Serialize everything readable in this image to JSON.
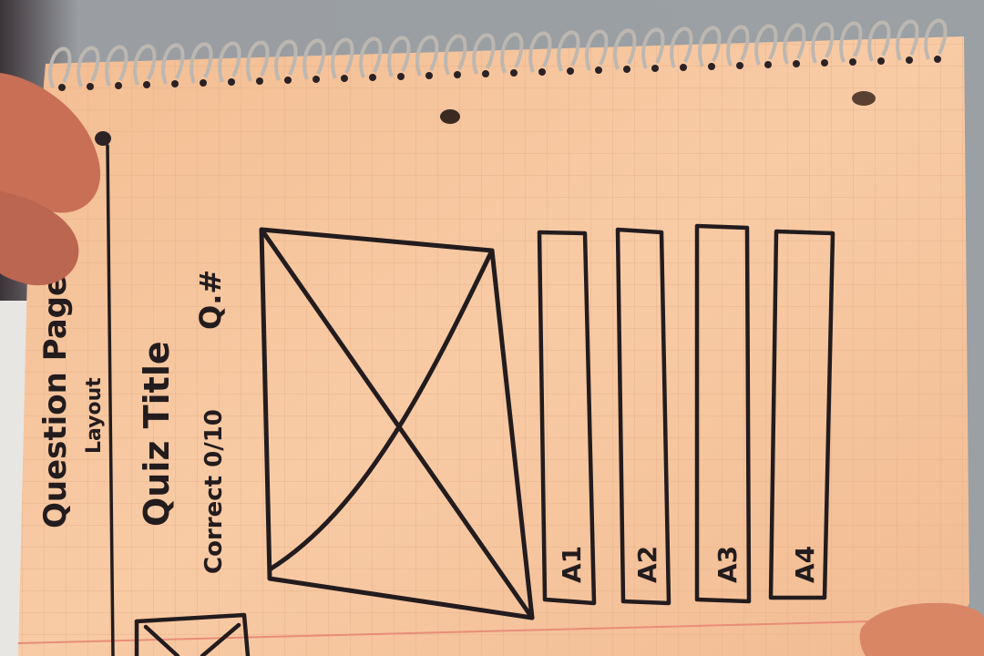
{
  "sketch": {
    "heading": "Question Page",
    "subheading": "Layout",
    "quiz_title": "Quiz Title",
    "score": "Correct 0/10",
    "question_number": "Q.#",
    "answers": [
      "A1",
      "A2",
      "A3",
      "A4"
    ]
  },
  "colors": {
    "paper": "#f6c7a0",
    "grid": "#e9b38c",
    "margin_line": "#e88d78",
    "ink": "#231c1e",
    "spiral": "#b9b3ad",
    "skin": "#d57c5f"
  }
}
